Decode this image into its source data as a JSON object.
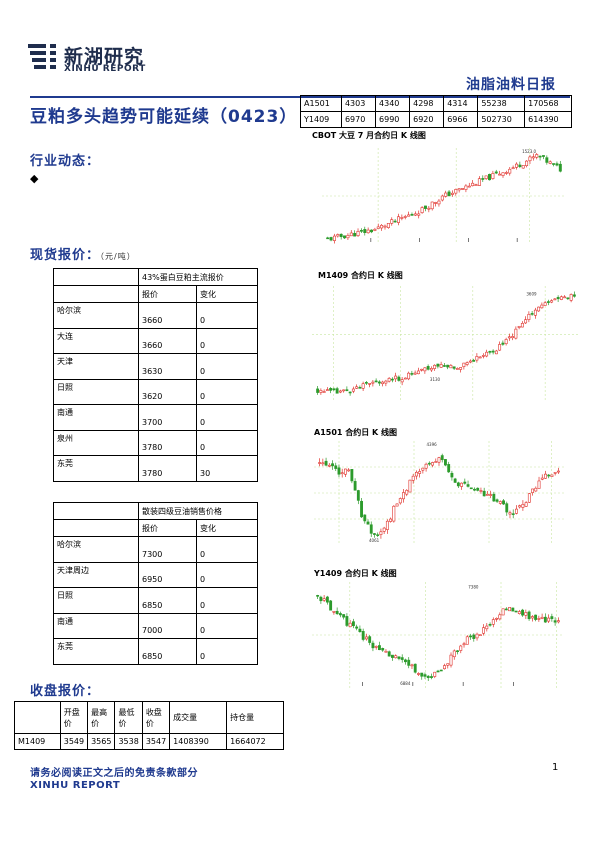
{
  "header": {
    "logo_cn": "新湖研究",
    "logo_en": "XINHU REPORT",
    "report_type": "油脂油料日报"
  },
  "title": "豆粕多头趋势可能延续（0423）",
  "sections": {
    "industry": "行业动态：",
    "spot": "现货报价：",
    "spot_unit": "（元/吨）",
    "close": "收盘报价："
  },
  "futures_table": [
    [
      "A1501",
      "4303",
      "4340",
      "4298",
      "4314",
      "55238",
      "170568"
    ],
    [
      "Y1409",
      "6970",
      "6990",
      "6920",
      "6966",
      "502730",
      "614390"
    ]
  ],
  "spot_soymeal": {
    "heading": "43%蛋白豆粕主流报价",
    "col_price": "报价",
    "col_change": "变化",
    "rows": [
      {
        "city": "哈尔滨",
        "price": "3660",
        "change": "0"
      },
      {
        "city": "大连",
        "price": "3660",
        "change": "0"
      },
      {
        "city": "天津",
        "price": "3630",
        "change": "0"
      },
      {
        "city": "日照",
        "price": "3620",
        "change": "0"
      },
      {
        "city": "南通",
        "price": "3700",
        "change": "0"
      },
      {
        "city": "泉州",
        "price": "3780",
        "change": "0"
      },
      {
        "city": "东莞",
        "price": "3780",
        "change": "30"
      }
    ]
  },
  "spot_soyoil": {
    "heading": "散装四级豆油销售价格",
    "col_price": "报价",
    "col_change": "变化",
    "rows": [
      {
        "city": "哈尔滨",
        "price": "7300",
        "change": "0"
      },
      {
        "city": "天津周边",
        "price": "6950",
        "change": "0"
      },
      {
        "city": "日照",
        "price": "6850",
        "change": "0"
      },
      {
        "city": "南通",
        "price": "7000",
        "change": "0"
      },
      {
        "city": "东莞",
        "price": "6850",
        "change": "0"
      }
    ]
  },
  "close_table": {
    "headers": [
      "",
      "开盘价",
      "最高价",
      "最低价",
      "收盘价",
      "成交量",
      "持仓量"
    ],
    "rows": [
      [
        "M1409",
        "3549",
        "3565",
        "3538",
        "3547",
        "1408390",
        "1664072"
      ]
    ]
  },
  "charts": {
    "cbot": {
      "title": "CBOT 大豆 7 月合约日 K 线图",
      "high_label": "1523.0"
    },
    "m1409": {
      "title": "M1409 合约日 K 线图",
      "high_label": "3609",
      "low_label": "3130"
    },
    "a1501": {
      "title": "A1501 合约日 K 线图",
      "high_label": "4396",
      "low_label": "4061"
    },
    "y1409": {
      "title": "Y1409 合约日 K 线图",
      "high_label": "7380",
      "low_label": "6884"
    }
  },
  "footer": {
    "disclaimer": "请务必阅读正文之后的免责条款部分",
    "brand": "XINHU REPORT",
    "page": "1"
  },
  "colors": {
    "brand_blue": "#1f3a8f",
    "candle_up": "#e0302a",
    "candle_down": "#2c9b2c",
    "grid": "#c8e6a0"
  }
}
